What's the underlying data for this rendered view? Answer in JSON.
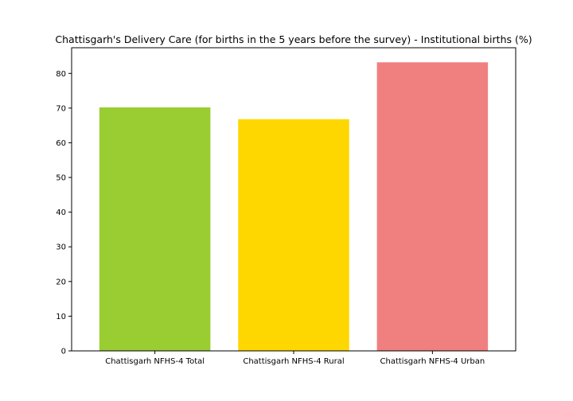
{
  "chart_data": {
    "type": "bar",
    "title": "Chattisgarh's Delivery Care (for births in the 5 years before the survey) - Institutional births (%)",
    "xlabel": "",
    "ylabel": "",
    "categories": [
      "Chattisgarh NFHS-4 Total",
      "Chattisgarh NFHS-4 Rural",
      "Chattisgarh NFHS-4 Urban"
    ],
    "values": [
      70.2,
      66.8,
      83.2
    ],
    "colors": [
      "#9acd32",
      "#ffd700",
      "#f08080"
    ],
    "ylim": [
      0,
      87.4
    ],
    "yticks": [
      0,
      10,
      20,
      30,
      40,
      50,
      60,
      70,
      80
    ],
    "ytick_labels": [
      "0",
      "10",
      "20",
      "30",
      "40",
      "50",
      "60",
      "70",
      "80"
    ],
    "grid": false,
    "legend": "none"
  }
}
